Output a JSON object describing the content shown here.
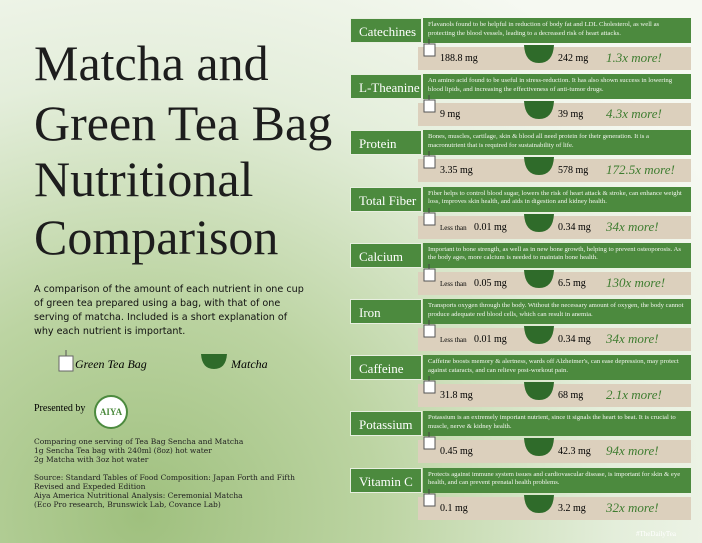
{
  "header": {
    "title_lines": [
      "Matcha and",
      "Green Tea Bag",
      "Nutritional",
      "Comparison"
    ],
    "description": "A comparison of the amount of each nutrient in one cup of green tea prepared using a bag, with that of one serving of matcha. Included is a short explanation of why each nutrient is important."
  },
  "legend": {
    "bag": "Green Tea Bag",
    "matcha": "Matcha"
  },
  "presented_by": {
    "label": "Presented by",
    "logo": "AIYA"
  },
  "notes": [
    "Comparing one serving of Tea Bag Sencha and Matcha",
    "1g Sencha Tea bag with 240ml (8oz) hot water",
    "2g Matcha with 3oz hot water",
    "",
    "Source: Standard Tables of Food Composition: Japan Forth and Fifth Revised and Expeded Edition",
    "Aiya America Nutritional Analysis: Ceremonial Matcha",
    "(Eco Pro research, Brunswick Lab, Covance Lab)"
  ],
  "nutrients": [
    {
      "name": "Catechines",
      "description": "Flavanols found to be helpful in reduction of body fat and LDL Cholesterol, as well as protecting the blood vessels, leading to a decreased risk of heart attacks.",
      "bag": "188.8 mg",
      "matcha": "242 mg",
      "ratio": "1.3x more!"
    },
    {
      "name": "L-Theanine",
      "description": "An amino acid found to be useful in stress-reduction. It has also shown success in lowering blood lipids, and increasing the effectiveness of anti-tumor drugs.",
      "bag": "9 mg",
      "matcha": "39 mg",
      "ratio": "4.3x more!"
    },
    {
      "name": "Protein",
      "description": "Bones, muscles, cartilage, skin & blood all need protein for their generation. It is a macronutrient that is required for sustainability of life.",
      "bag": "3.35 mg",
      "matcha": "578 mg",
      "ratio": "172.5x more!"
    },
    {
      "name": "Total Fiber",
      "description": "Fiber helps to control blood sugar, lowers the risk of heart attack & stroke, can enhance weight loss, improves skin health, and aids in digestion and kidney health.",
      "bag_prefix": "Less than",
      "bag": "0.01 mg",
      "matcha": "0.34 mg",
      "ratio": "34x more!"
    },
    {
      "name": "Calcium",
      "description": "Important to bone strength, as well as in new bone growth, helping to prevent osteoporosis. As the body ages, more calcium is needed to maintain bone health.",
      "bag_prefix": "Less than",
      "bag": "0.05 mg",
      "matcha": "6.5 mg",
      "ratio": "130x more!"
    },
    {
      "name": "Iron",
      "description": "Transports oxygen through the body. Without the necessary amount of oxygen, the body cannot produce adequate red blood cells, which can result in anemia.",
      "bag_prefix": "Less than",
      "bag": "0.01 mg",
      "matcha": "0.34 mg",
      "ratio": "34x more!"
    },
    {
      "name": "Caffeine",
      "description": "Caffeine boosts memory & alertness, wards off Alzheimer's, can ease depression, may protect against cataracts, and can relieve post-workout pain.",
      "bag": "31.8 mg",
      "matcha": "68 mg",
      "ratio": "2.1x more!"
    },
    {
      "name": "Potassium",
      "description": "Potassium is an extremely important nutrient, since it signals the heart to beat. It is crucial to muscle, nerve & kidney health.",
      "bag": "0.45 mg",
      "matcha": "42.3 mg",
      "ratio": "94x more!"
    },
    {
      "name": "Vitamin C",
      "description": "Protects against immune system issues and cardiovascular disease, is important for skin & eye health, and can prevent prenatal health problems.",
      "bag": "0.1 mg",
      "matcha": "3.2 mg",
      "ratio": "32x more!"
    }
  ],
  "watermark": "#TheDailyTea"
}
